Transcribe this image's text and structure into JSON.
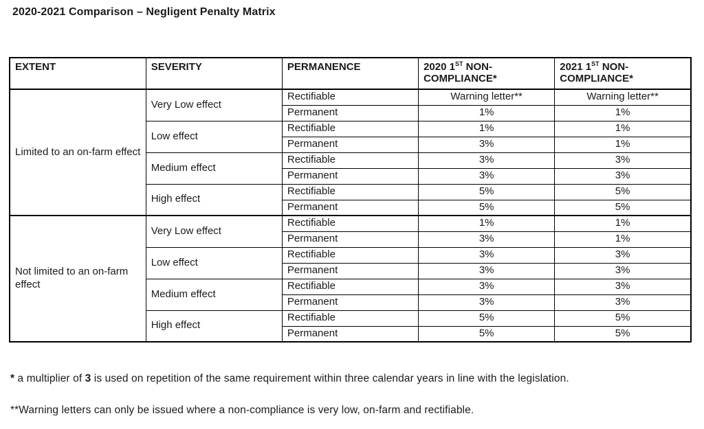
{
  "title": "2020-2021 Comparison – Negligent Penalty Matrix",
  "table": {
    "headers": {
      "extent": "EXTENT",
      "severity": "SEVERITY",
      "permanence": "PERMANENCE",
      "y2020": {
        "l1a": "2020 1",
        "sup": "ST",
        "l1b": " NON-",
        "l2": "COMPLIANCE*"
      },
      "y2021": {
        "l1a": "2021 1",
        "sup": "ST",
        "l1b": " NON-",
        "l2": "COMPLIANCE*"
      }
    },
    "extents": [
      "Limited to an on-farm effect",
      "Not limited to an on-farm effect"
    ],
    "severities": [
      "Very Low effect",
      "Low effect",
      "Medium effect",
      "High effect",
      "Very Low effect",
      "Low effect",
      "Medium effect",
      "High effect"
    ],
    "rows": [
      {
        "permanence": "Rectifiable",
        "c2020": "Warning letter**",
        "c2021": "Warning letter**"
      },
      {
        "permanence": "Permanent",
        "c2020": "1%",
        "c2021": "1%"
      },
      {
        "permanence": "Rectifiable",
        "c2020": "1%",
        "c2021": "1%"
      },
      {
        "permanence": "Permanent",
        "c2020": "3%",
        "c2021": "1%"
      },
      {
        "permanence": "Rectifiable",
        "c2020": "3%",
        "c2021": "3%"
      },
      {
        "permanence": "Permanent",
        "c2020": "3%",
        "c2021": "3%"
      },
      {
        "permanence": "Rectifiable",
        "c2020": "5%",
        "c2021": "5%"
      },
      {
        "permanence": "Permanent",
        "c2020": "5%",
        "c2021": "5%"
      },
      {
        "permanence": "Rectifiable",
        "c2020": "1%",
        "c2021": "1%"
      },
      {
        "permanence": "Permanent",
        "c2020": "3%",
        "c2021": "1%"
      },
      {
        "permanence": "Rectifiable",
        "c2020": "3%",
        "c2021": "3%"
      },
      {
        "permanence": "Permanent",
        "c2020": "3%",
        "c2021": "3%"
      },
      {
        "permanence": "Rectifiable",
        "c2020": "3%",
        "c2021": "3%"
      },
      {
        "permanence": "Permanent",
        "c2020": "3%",
        "c2021": "3%"
      },
      {
        "permanence": "Rectifiable",
        "c2020": "5%",
        "c2021": "5%"
      },
      {
        "permanence": "Permanent",
        "c2020": "5%",
        "c2021": "5%"
      }
    ]
  },
  "footnotes": {
    "fn1": {
      "star": "*",
      "t1": " a multiplier of ",
      "bold": "3",
      "t2": " is used on repetition of the same requirement within three calendar years in line with the legislation."
    },
    "fn2": "**Warning letters can only be issued where a non-compliance is very low, on-farm and rectifiable."
  }
}
